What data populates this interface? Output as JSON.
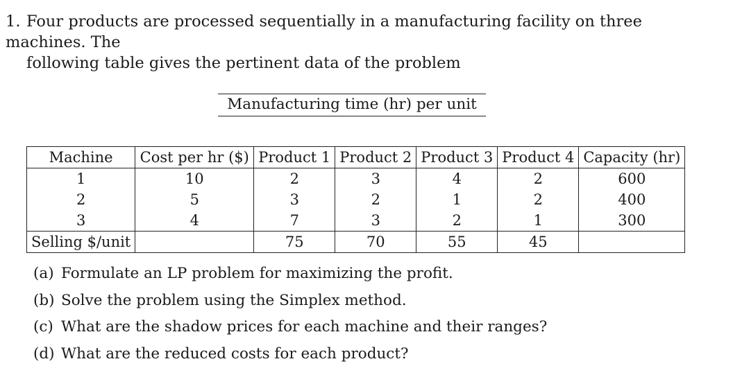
{
  "problem": {
    "number": "1.",
    "line1": "Four products are processed sequentially in a manufacturing facility on three machines. The",
    "line2": "following table gives the pertinent data of the problem"
  },
  "table": {
    "caption": "Manufacturing time (hr) per unit",
    "headers": [
      "Machine",
      "Cost per hr ($)",
      "Product 1",
      "Product 2",
      "Product 3",
      "Product 4",
      "Capacity (hr)"
    ],
    "rows": [
      [
        "1",
        "10",
        "2",
        "3",
        "4",
        "2",
        "600"
      ],
      [
        "2",
        "5",
        "3",
        "2",
        "1",
        "2",
        "400"
      ],
      [
        "3",
        "4",
        "7",
        "3",
        "2",
        "1",
        "300"
      ]
    ],
    "selling": {
      "label": "Selling $/unit",
      "values": [
        "75",
        "70",
        "55",
        "45"
      ]
    }
  },
  "questions": [
    {
      "label": "(a)",
      "text": "Formulate an LP problem for maximizing the profit."
    },
    {
      "label": "(b)",
      "text": "Solve the problem using the Simplex method."
    },
    {
      "label": "(c)",
      "text": "What are the shadow prices for each machine and their ranges?"
    },
    {
      "label": "(d)",
      "text": "What are the reduced costs for each product?"
    }
  ]
}
